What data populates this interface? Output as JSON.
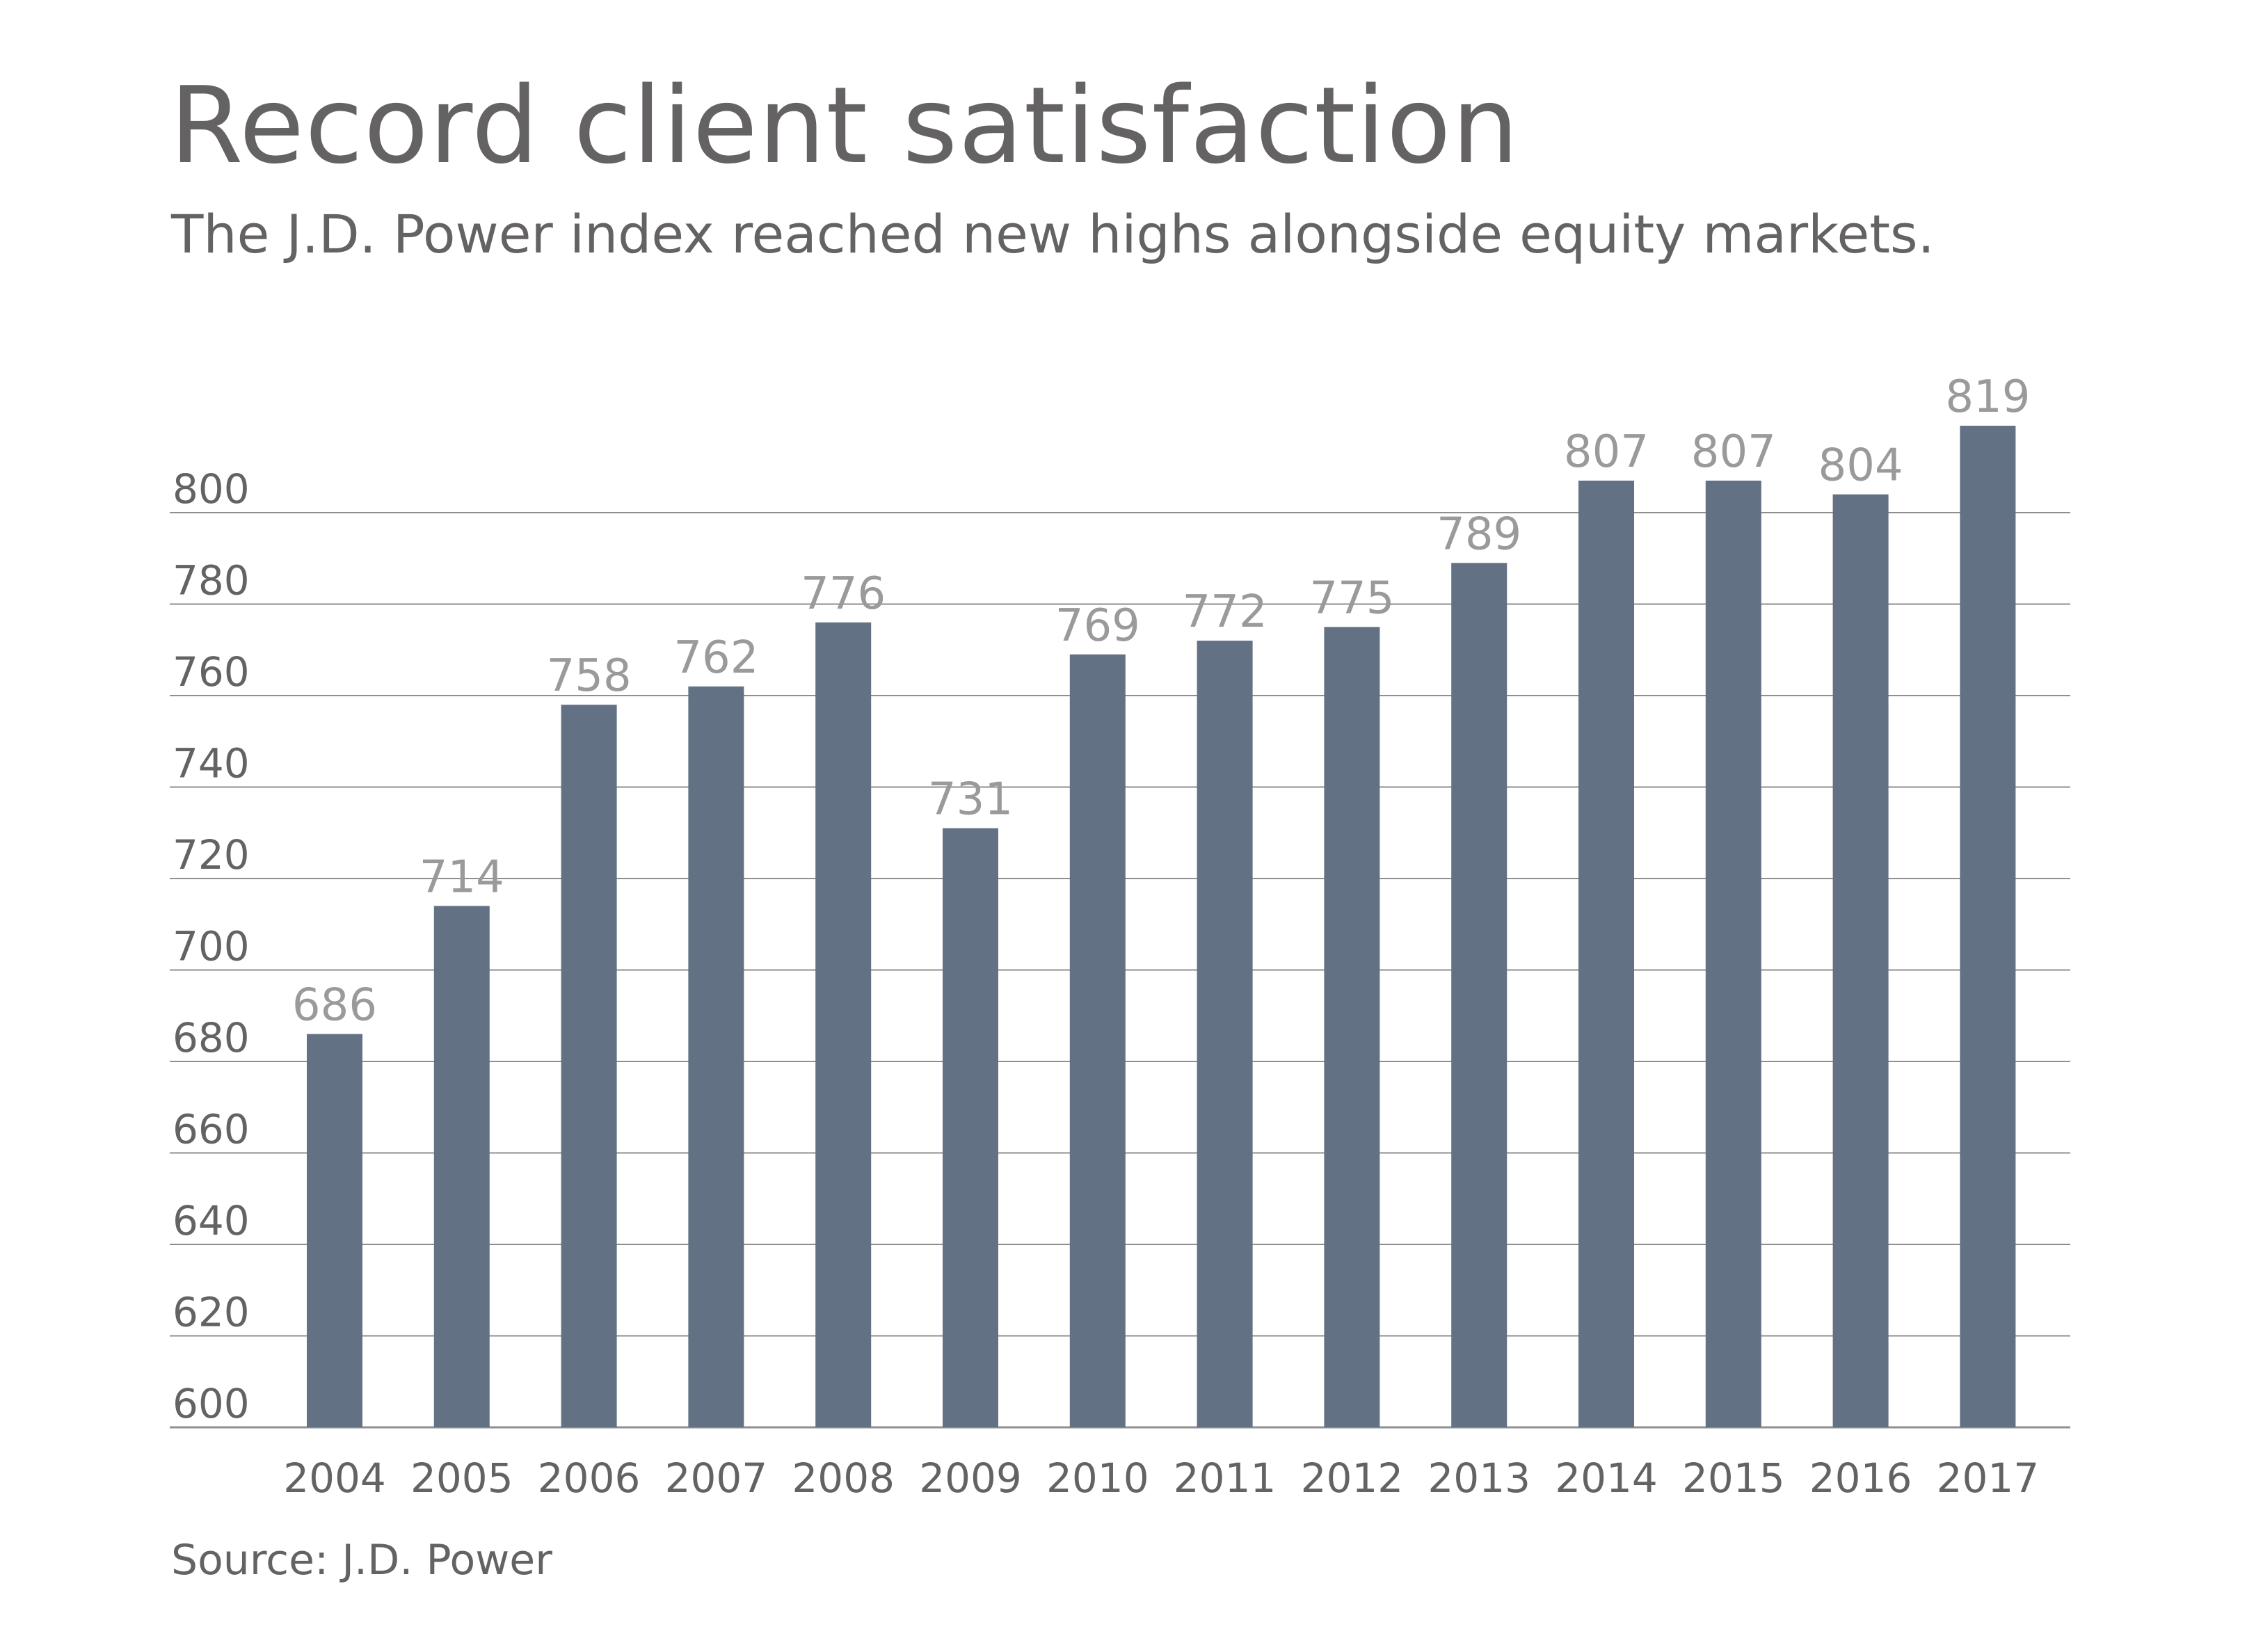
{
  "chart_data": {
    "type": "bar",
    "title": "Record client satisfaction",
    "subtitle": "The J.D. Power index reached new highs alongside equity markets.",
    "source": "Source: J.D. Power",
    "xlabel": "",
    "ylabel": "",
    "categories": [
      "2004",
      "2005",
      "2006",
      "2007",
      "2008",
      "2009",
      "2010",
      "2011",
      "2012",
      "2013",
      "2014",
      "2015",
      "2016",
      "2017"
    ],
    "values": [
      686,
      714,
      758,
      762,
      776,
      731,
      769,
      772,
      775,
      789,
      807,
      807,
      804,
      819
    ],
    "data_labels": [
      "686",
      "714",
      "758",
      "762",
      "776",
      "731",
      "769",
      "772",
      "775",
      "789",
      "807",
      "807",
      "804",
      "819"
    ],
    "ylim": [
      600,
      800
    ],
    "yticks": [
      600,
      620,
      640,
      660,
      680,
      700,
      720,
      740,
      760,
      780,
      800
    ],
    "ytick_labels": [
      "600",
      "620",
      "640",
      "660",
      "680",
      "700",
      "720",
      "740",
      "760",
      "780",
      "800"
    ],
    "grid": true,
    "legend": "none",
    "colors": {
      "bar": "#637184",
      "gridline": "#8f8f8f",
      "text": "#656263",
      "data_label": "#9a9a9a"
    }
  }
}
